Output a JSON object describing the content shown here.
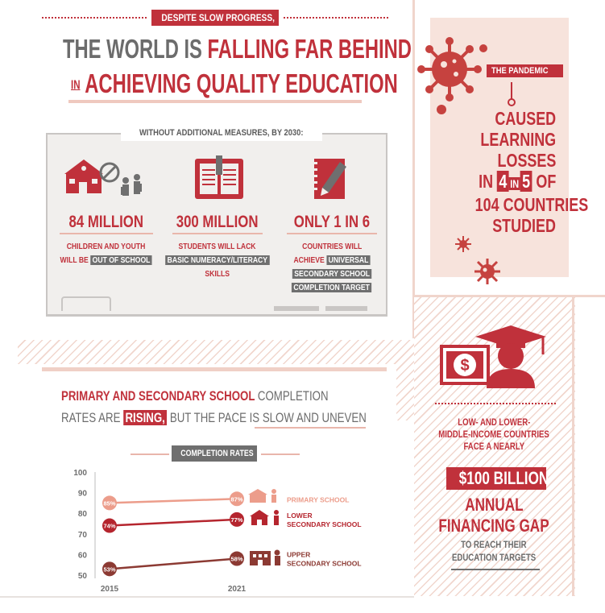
{
  "header": {
    "kicker": "DESPITE SLOW PROGRESS,",
    "title_part1": "THE WORLD IS ",
    "title_highlight": "FALLING FAR BEHIND",
    "title_in": "IN",
    "title_line2": "ACHIEVING QUALITY EDUCATION"
  },
  "board": {
    "caption": "WITHOUT ADDITIONAL MEASURES, BY 2030:",
    "stats": [
      {
        "figure": "84 MILLION",
        "line1": "CHILDREN AND YOUTH",
        "line2_prefix": "WILL BE",
        "line2_chip": "OUT OF SCHOOL"
      },
      {
        "figure": "300 MILLION",
        "line1": "STUDENTS WILL LACK",
        "line2_chip": "BASIC NUMERACY/LITERACY",
        "line3": "SKILLS"
      },
      {
        "figure": "ONLY 1 IN 6",
        "line1": "COUNTRIES WILL",
        "line2_prefix": "ACHIEVE",
        "line2_chip": "UNIVERSAL",
        "line3_chip": "SECONDARY SCHOOL",
        "line4_chip": "COMPLETION TARGET"
      }
    ]
  },
  "pandemic": {
    "badge": "THE PANDEMIC",
    "line1": "CAUSED",
    "line2": "LEARNING",
    "line3": "LOSSES",
    "line4_pre": "IN",
    "line4_a": "4",
    "line4_in": "IN",
    "line4_b": "5",
    "line4_post": "OF",
    "line5": "104 COUNTRIES",
    "line6": "STUDIED"
  },
  "completion": {
    "heading_bold": "PRIMARY AND SECONDARY SCHOOL",
    "heading_rest": "COMPLETION",
    "line2_pre": "RATES ARE",
    "line2_chip": "RISING,",
    "line2_post": "BUT THE PACE IS SLOW AND UNEVEN",
    "chart_badge": "COMPLETION RATES"
  },
  "finance": {
    "line1": "LOW- AND LOWER-",
    "line2": "MIDDLE-INCOME COUNTRIES",
    "line3": "FACE A NEARLY",
    "amount": "$100 BILLION",
    "line5": "ANNUAL",
    "line6": "FINANCING GAP",
    "line7": "TO REACH THEIR",
    "line8": "EDUCATION TARGETS"
  },
  "chart_data": {
    "type": "line",
    "title": "COMPLETION RATES",
    "x": [
      "2015",
      "2021"
    ],
    "ylim": [
      50,
      100
    ],
    "yticks": [
      50,
      60,
      70,
      80,
      90,
      100
    ],
    "series": [
      {
        "name": "PRIMARY SCHOOL",
        "values": [
          85,
          87
        ],
        "labels": [
          "85%",
          "87%"
        ],
        "color": "#ec9d8b"
      },
      {
        "name": "LOWER SECONDARY SCHOOL",
        "values": [
          74,
          77
        ],
        "labels": [
          "74%",
          "77%"
        ],
        "color": "#b5252e"
      },
      {
        "name": "UPPER SECONDARY SCHOOL",
        "values": [
          53,
          58
        ],
        "labels": [
          "53%",
          "58%"
        ],
        "color": "#8c3a33"
      }
    ],
    "grid": false,
    "legend": "right"
  }
}
